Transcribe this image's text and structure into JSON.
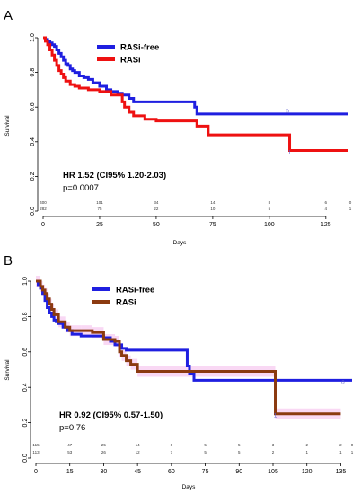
{
  "chart_data": [
    {
      "type": "line",
      "panel_label": "A",
      "xlabel": "Days",
      "ylabel": "Survival",
      "xlim": [
        0,
        135
      ],
      "ylim": [
        0,
        1
      ],
      "x_ticks": [
        "0",
        "25",
        "50",
        "75",
        "100",
        "125"
      ],
      "y_ticks": [
        "0.0",
        "0.2",
        "0.4",
        "0.6",
        "0.8",
        "1.0"
      ],
      "legend": [
        "RASi-free",
        "RASi"
      ],
      "legend_position": "top-center",
      "series": [
        {
          "name": "RASi-free",
          "color": "#1f1fe0",
          "x": [
            0,
            1,
            2,
            3,
            4,
            5,
            6,
            7,
            8,
            9,
            10,
            11,
            12,
            13,
            14,
            16,
            18,
            20,
            22,
            25,
            28,
            30,
            33,
            35,
            38,
            40,
            67,
            68,
            135
          ],
          "y": [
            1.0,
            0.99,
            0.98,
            0.97,
            0.96,
            0.95,
            0.93,
            0.91,
            0.89,
            0.87,
            0.85,
            0.84,
            0.82,
            0.81,
            0.8,
            0.78,
            0.77,
            0.76,
            0.74,
            0.72,
            0.7,
            0.69,
            0.68,
            0.67,
            0.65,
            0.63,
            0.6,
            0.56,
            0.56
          ]
        },
        {
          "name": "RASi",
          "color": "#ee1111",
          "x": [
            0,
            1,
            2,
            3,
            4,
            5,
            6,
            7,
            8,
            9,
            10,
            12,
            14,
            16,
            20,
            25,
            30,
            35,
            36,
            38,
            40,
            45,
            50,
            68,
            70,
            73,
            108,
            109,
            135
          ],
          "y": [
            1.0,
            0.98,
            0.96,
            0.93,
            0.9,
            0.87,
            0.84,
            0.81,
            0.79,
            0.77,
            0.75,
            0.73,
            0.72,
            0.71,
            0.7,
            0.69,
            0.67,
            0.63,
            0.6,
            0.57,
            0.55,
            0.53,
            0.52,
            0.49,
            0.49,
            0.44,
            0.44,
            0.35,
            0.35
          ]
        }
      ],
      "censor_marks": [
        {
          "label": "0",
          "x": 108,
          "y": 0.565
        },
        {
          "label": "1",
          "x": 109,
          "y": 0.33
        }
      ],
      "annotation": {
        "hr": "HR 1.52 (CI95% 1.20-2.03)",
        "p": "p=0.0007"
      },
      "risk_table": [
        {
          "x": [
            0,
            25,
            50,
            75,
            100,
            125,
            140
          ],
          "counts": [
            "400",
            "101",
            "34",
            "14",
            "8",
            "6",
            "0"
          ]
        },
        {
          "x": [
            0,
            25,
            50,
            75,
            100,
            125,
            140
          ],
          "counts": [
            "282",
            "75",
            "22",
            "10",
            "5",
            "4",
            "1"
          ]
        }
      ]
    },
    {
      "type": "line",
      "panel_label": "B",
      "xlabel": "Days",
      "ylabel": "Survival",
      "xlim": [
        0,
        140
      ],
      "ylim": [
        0,
        1
      ],
      "x_ticks": [
        "0",
        "15",
        "30",
        "45",
        "60",
        "75",
        "90",
        "105",
        "120",
        "135"
      ],
      "y_ticks": [
        "0.0",
        "0.2",
        "0.4",
        "0.6",
        "0.8",
        "1.0"
      ],
      "legend": [
        "RASi-free",
        "RASi"
      ],
      "legend_position": "top-center",
      "series": [
        {
          "name": "RASi-free",
          "color": "#1f1fe0",
          "x": [
            0,
            1,
            2,
            3,
            4,
            5,
            6,
            7,
            8,
            9,
            10,
            12,
            14,
            16,
            20,
            30,
            33,
            35,
            38,
            40,
            66,
            67,
            68,
            70,
            140
          ],
          "y": [
            1.0,
            0.98,
            0.96,
            0.93,
            0.89,
            0.85,
            0.82,
            0.8,
            0.78,
            0.77,
            0.76,
            0.74,
            0.72,
            0.7,
            0.69,
            0.68,
            0.66,
            0.64,
            0.62,
            0.61,
            0.61,
            0.52,
            0.48,
            0.44,
            0.44
          ]
        },
        {
          "name": "RASi",
          "color": "#8b3a10",
          "x": [
            0,
            2,
            3,
            4,
            5,
            6,
            7,
            8,
            10,
            13,
            15,
            20,
            25,
            30,
            35,
            37,
            38,
            40,
            42,
            45,
            105,
            106,
            135
          ],
          "y": [
            1.0,
            0.97,
            0.95,
            0.93,
            0.9,
            0.87,
            0.84,
            0.81,
            0.77,
            0.74,
            0.72,
            0.72,
            0.71,
            0.67,
            0.66,
            0.6,
            0.58,
            0.55,
            0.53,
            0.49,
            0.49,
            0.25,
            0.25
          ]
        }
      ],
      "censor_marks": [
        {
          "label": "0",
          "x": 136,
          "y": 0.42
        },
        {
          "label": "1",
          "x": 106,
          "y": 0.23
        }
      ],
      "annotation": {
        "hr": "HR 0.92 (CI95% 0.57-1.50)",
        "p": "p=0.76"
      },
      "risk_table": [
        {
          "x": [
            0,
            15,
            30,
            45,
            60,
            75,
            90,
            105,
            120,
            135,
            140
          ],
          "counts": [
            "115",
            "47",
            "25",
            "14",
            "6",
            "5",
            "5",
            "3",
            "2",
            "2",
            "0"
          ]
        },
        {
          "x": [
            0,
            15,
            30,
            45,
            60,
            75,
            90,
            105,
            120,
            135,
            140
          ],
          "counts": [
            "113",
            "53",
            "26",
            "12",
            "7",
            "5",
            "5",
            "2",
            "1",
            "1",
            "1"
          ]
        }
      ]
    }
  ]
}
